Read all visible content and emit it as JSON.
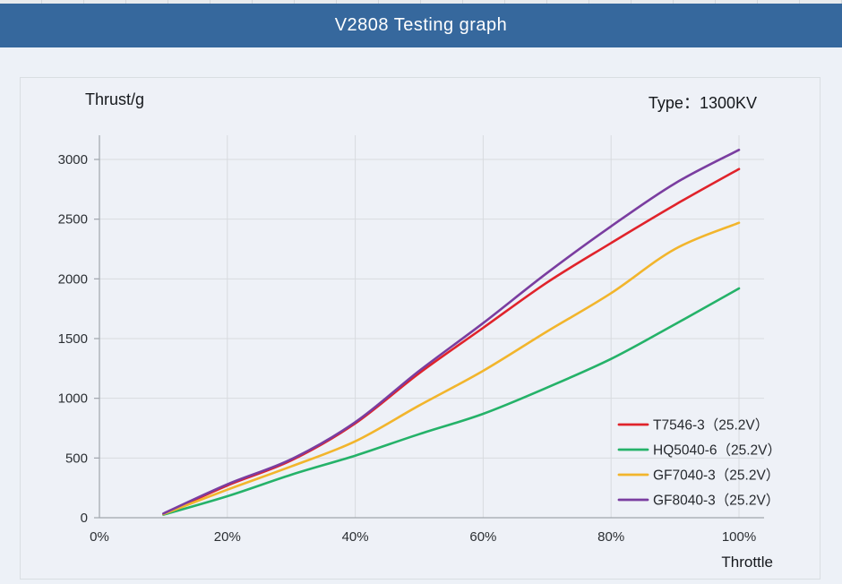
{
  "header": {
    "title": "V2808 Testing graph",
    "type_label": "Type：1300KV"
  },
  "colors": {
    "header_bg": "#36689d",
    "page_bg": "#edf1f7",
    "panel_border": "#d9dee2",
    "grid": "#d8dbdf",
    "axis": "#a0a6ad",
    "tick_text": "#2b2f33"
  },
  "chart_data": {
    "type": "line",
    "title": "V2808 Testing graph",
    "subtitle": "Type：1300KV",
    "xlabel": "Throttle",
    "ylabel": "Thrust/g",
    "x": [
      10,
      20,
      30,
      40,
      50,
      60,
      70,
      80,
      90,
      100
    ],
    "x_unit": "percent",
    "xlim": [
      0,
      100
    ],
    "x_tick_labels": [
      "0%",
      "20%",
      "40%",
      "60%",
      "80%",
      "100%"
    ],
    "x_tick_values": [
      0,
      20,
      40,
      60,
      80,
      100
    ],
    "ylim": [
      0,
      3200
    ],
    "yticks": [
      0,
      500,
      1000,
      1500,
      2000,
      2500,
      3000
    ],
    "grid": true,
    "legend_position": "lower right",
    "series": [
      {
        "name": "T7546-3（25.2V）",
        "color": "#e0232b",
        "values": [
          30,
          270,
          480,
          790,
          1210,
          1590,
          1970,
          2300,
          2620,
          2920
        ]
      },
      {
        "name": "HQ5040-6（25.2V）",
        "color": "#25b269",
        "values": [
          25,
          180,
          360,
          520,
          700,
          870,
          1090,
          1330,
          1620,
          1920
        ]
      },
      {
        "name": "GF7040-3（25.2V）",
        "color": "#f2b52c",
        "values": [
          30,
          235,
          430,
          640,
          940,
          1230,
          1560,
          1880,
          2250,
          2470
        ]
      },
      {
        "name": "GF8040-3（25.2V）",
        "color": "#7a3da0",
        "values": [
          35,
          280,
          490,
          800,
          1230,
          1630,
          2050,
          2440,
          2800,
          3080
        ]
      }
    ],
    "legend_draw_order_note": "legend listed top to bottom: red, green, yellow, purple"
  }
}
